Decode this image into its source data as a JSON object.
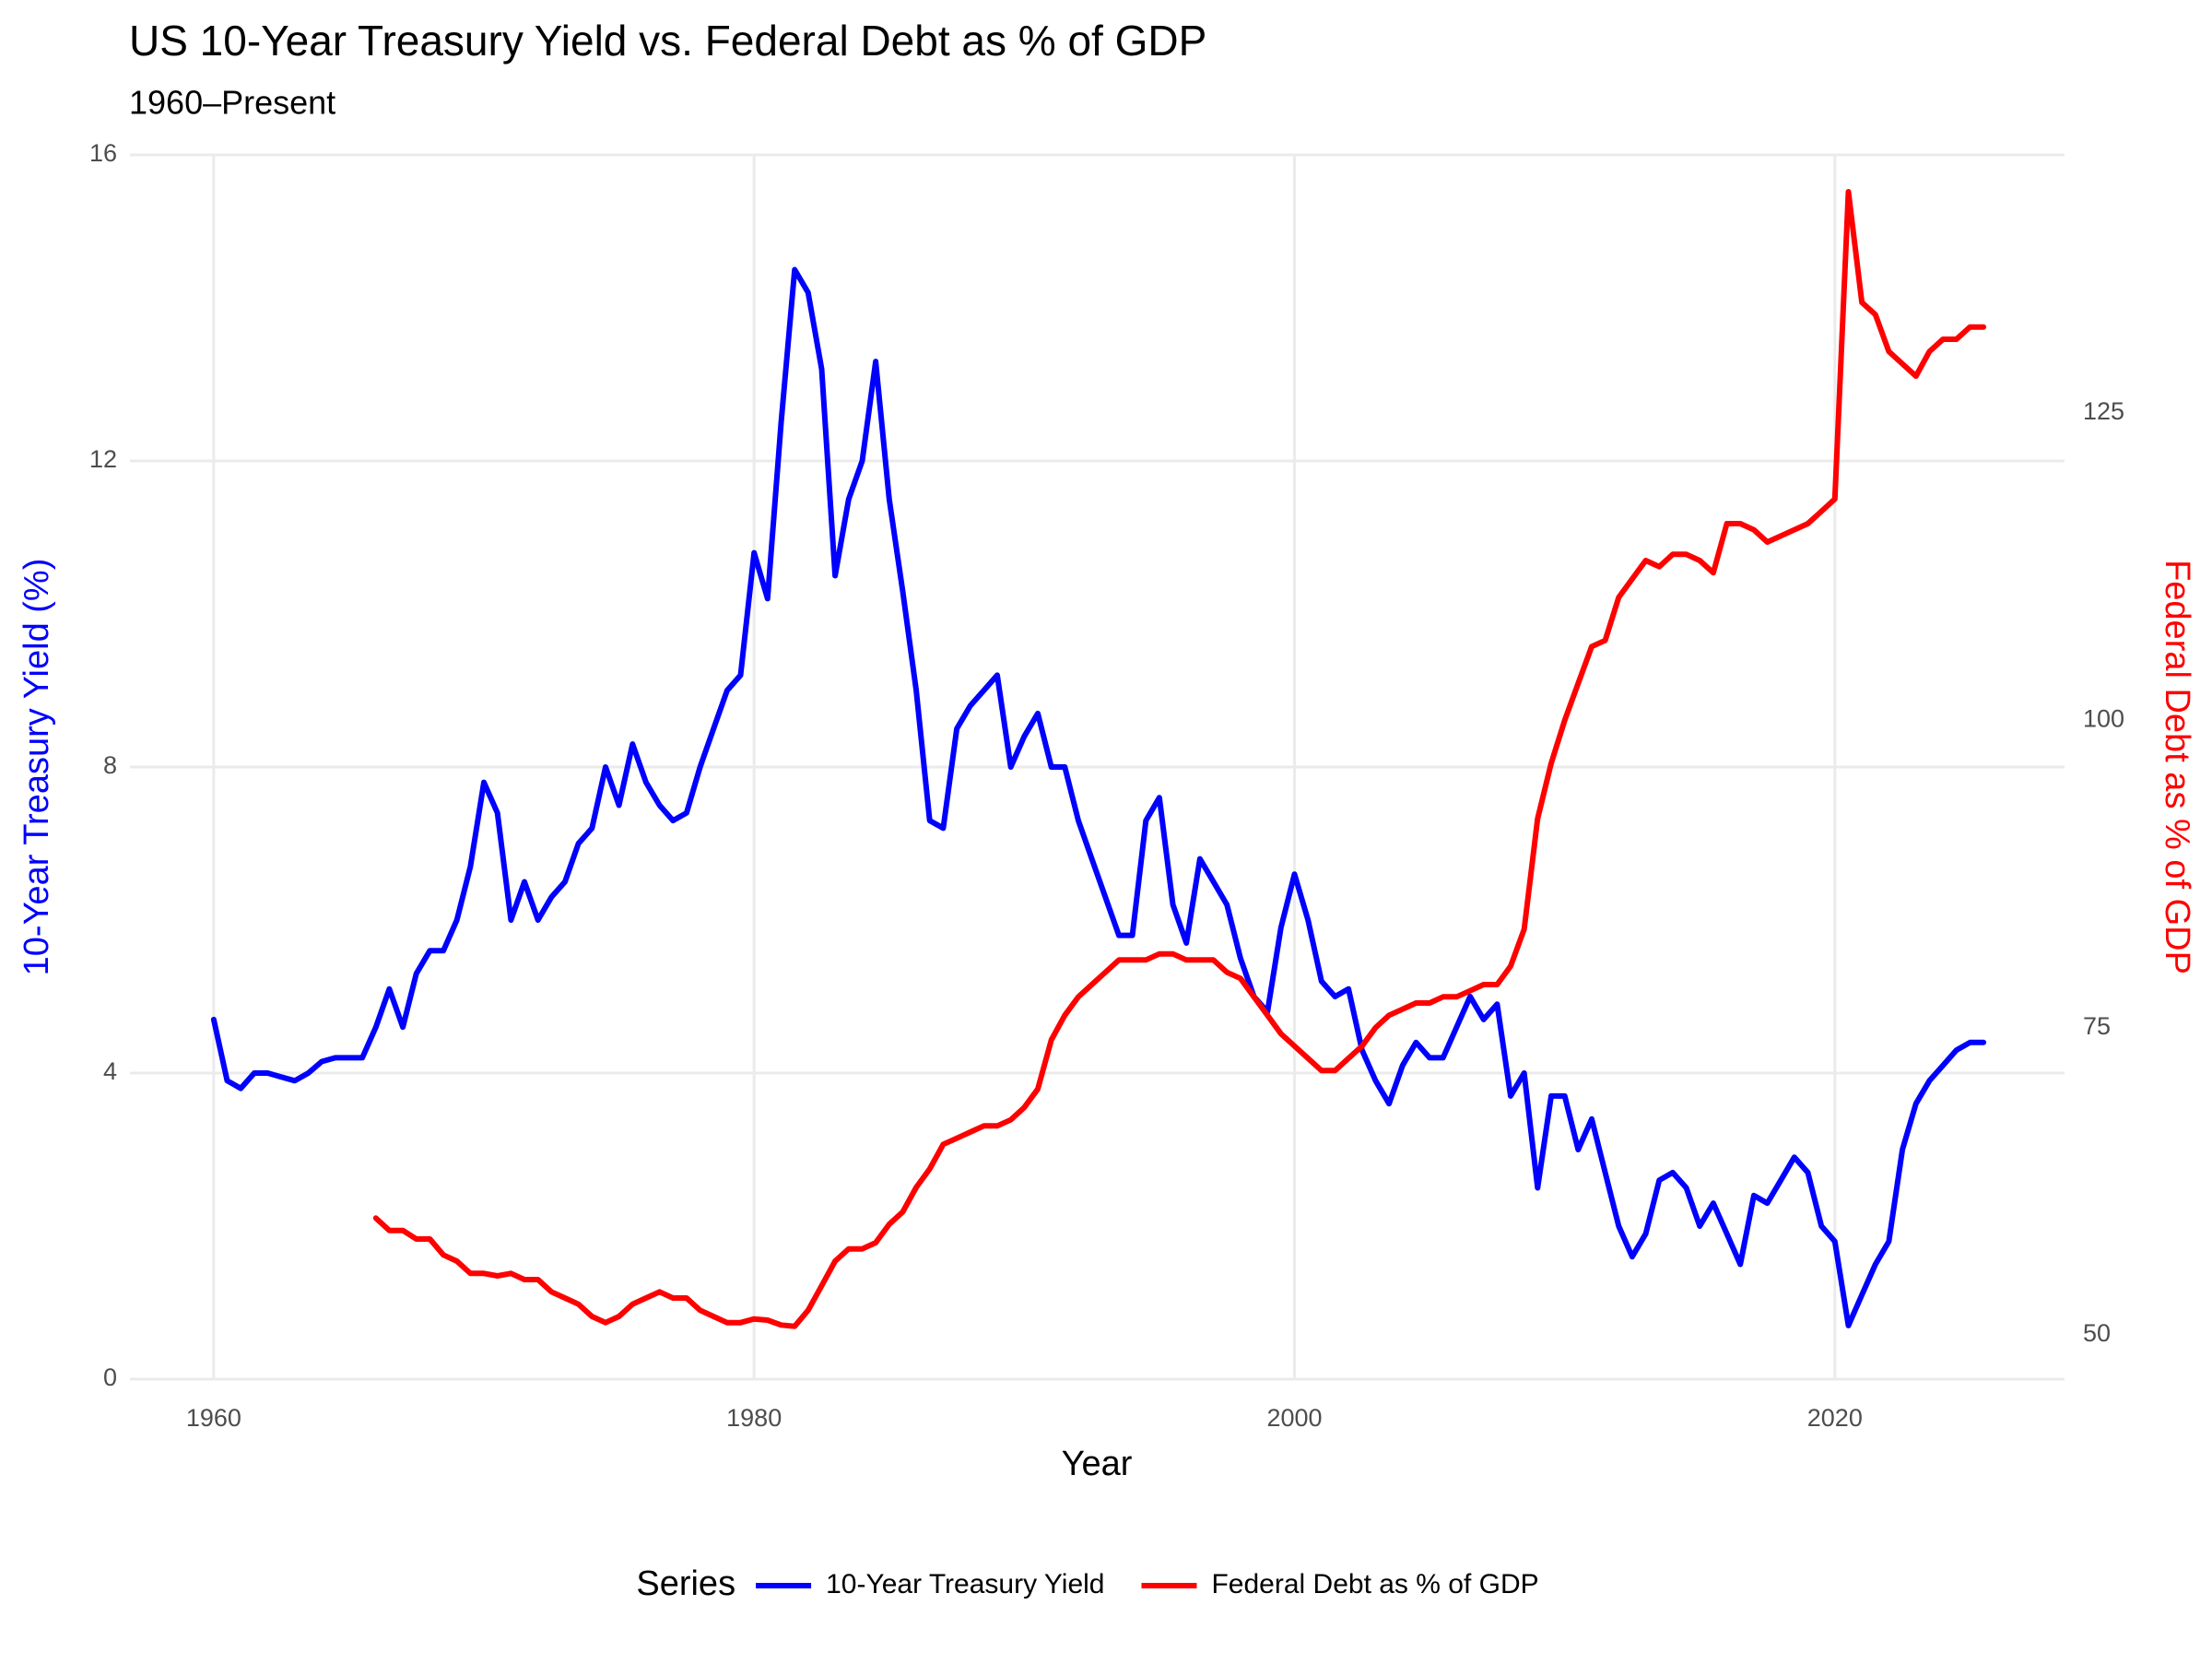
{
  "chart_data": {
    "type": "line",
    "title": "US 10-Year Treasury Yield vs. Federal Debt as % of GDP",
    "subtitle": "1960–Present",
    "x_label": "Year",
    "y_label": "10-Year Treasury Yield (%)",
    "y2_label": "Federal Debt as % of GDP",
    "legend_title": "Series",
    "legend_position": "bottom",
    "grid": true,
    "xlim": [
      1956.9,
      2028.5
    ],
    "xticks": [
      1960,
      1980,
      2000,
      2020
    ],
    "ylim": [
      0,
      16
    ],
    "yticks": [
      0,
      4,
      8,
      12,
      16
    ],
    "y2lim": [
      46.4,
      146.0
    ],
    "y2ticks": [
      50,
      75,
      100,
      125
    ],
    "x": [
      1960,
      1960.5,
      1961,
      1961.5,
      1962,
      1962.5,
      1963,
      1963.5,
      1964,
      1964.5,
      1965,
      1965.5,
      1966,
      1966.5,
      1967,
      1967.5,
      1968,
      1968.5,
      1969,
      1969.5,
      1970,
      1970.5,
      1971,
      1971.5,
      1972,
      1972.5,
      1973,
      1973.5,
      1974,
      1974.5,
      1975,
      1975.5,
      1976,
      1976.5,
      1977,
      1977.5,
      1978,
      1978.5,
      1979,
      1979.5,
      1980,
      1980.5,
      1981,
      1981.5,
      1982,
      1982.5,
      1983,
      1983.5,
      1984,
      1984.5,
      1985,
      1985.5,
      1986,
      1986.5,
      1987,
      1987.5,
      1988,
      1988.5,
      1989,
      1989.5,
      1990,
      1990.5,
      1991,
      1991.5,
      1992,
      1992.5,
      1993,
      1993.5,
      1994,
      1994.5,
      1995,
      1995.5,
      1996,
      1996.5,
      1997,
      1997.5,
      1998,
      1998.5,
      1999,
      1999.5,
      2000,
      2000.5,
      2001,
      2001.5,
      2002,
      2002.5,
      2003,
      2003.5,
      2004,
      2004.5,
      2005,
      2005.5,
      2006,
      2006.5,
      2007,
      2007.5,
      2008,
      2008.5,
      2009,
      2009.5,
      2010,
      2010.5,
      2011,
      2011.5,
      2012,
      2012.5,
      2013,
      2013.5,
      2014,
      2014.5,
      2015,
      2015.5,
      2016,
      2016.5,
      2017,
      2017.5,
      2018,
      2018.5,
      2019,
      2019.5,
      2020,
      2020.5,
      2021,
      2021.5,
      2022,
      2022.5,
      2023,
      2023.5,
      2024,
      2024.5,
      2025,
      2025.5
    ],
    "series": [
      {
        "name": "10-Year Treasury Yield",
        "color": "#0000ff",
        "axis": "y",
        "values": [
          4.7,
          3.9,
          3.8,
          4.0,
          4.0,
          3.95,
          3.9,
          4.0,
          4.15,
          4.2,
          4.2,
          4.2,
          4.6,
          5.1,
          4.6,
          5.3,
          5.6,
          5.6,
          6.0,
          6.7,
          7.8,
          7.4,
          6.0,
          6.5,
          6.0,
          6.3,
          6.5,
          7.0,
          7.2,
          8.0,
          7.5,
          8.3,
          7.8,
          7.5,
          7.3,
          7.4,
          8.0,
          8.5,
          9.0,
          9.2,
          10.8,
          10.2,
          12.5,
          14.5,
          14.2,
          13.2,
          10.5,
          11.5,
          12.0,
          13.3,
          11.5,
          10.3,
          9.0,
          7.3,
          7.2,
          8.5,
          8.8,
          9.0,
          9.2,
          8.0,
          8.4,
          8.7,
          8.0,
          8.0,
          7.3,
          6.8,
          6.3,
          5.8,
          5.8,
          7.3,
          7.6,
          6.2,
          5.7,
          6.8,
          6.5,
          6.2,
          5.5,
          5.0,
          4.8,
          5.9,
          6.6,
          6.0,
          5.2,
          5.0,
          5.1,
          4.3,
          3.9,
          3.6,
          4.1,
          4.4,
          4.2,
          4.2,
          4.6,
          5.0,
          4.7,
          4.9,
          3.7,
          4.0,
          2.5,
          3.7,
          3.7,
          3.0,
          3.4,
          2.7,
          2.0,
          1.6,
          1.9,
          2.6,
          2.7,
          2.5,
          2.0,
          2.3,
          1.9,
          1.5,
          2.4,
          2.3,
          2.6,
          2.9,
          2.7,
          2.0,
          1.8,
          0.7,
          1.1,
          1.5,
          1.8,
          3.0,
          3.6,
          3.9,
          4.1,
          4.3,
          4.4,
          4.4
        ]
      },
      {
        "name": "Federal Debt as % of GDP",
        "color": "#ff0000",
        "axis": "y2",
        "values": [
          null,
          null,
          null,
          null,
          null,
          null,
          null,
          null,
          null,
          null,
          null,
          null,
          59.5,
          58.5,
          58.5,
          57.8,
          57.8,
          56.5,
          56,
          55,
          55,
          54.8,
          55,
          54.5,
          54.5,
          53.5,
          53,
          52.5,
          51.5,
          51,
          51.5,
          52.5,
          53,
          53.5,
          53,
          53,
          52,
          51.5,
          51,
          51,
          51.3,
          51.2,
          50.8,
          50.7,
          52,
          54,
          56,
          57,
          57,
          57.5,
          59,
          60,
          62,
          63.5,
          65.5,
          66,
          66.5,
          67,
          67,
          67.5,
          68.5,
          70,
          74,
          76,
          77.5,
          78.5,
          79.5,
          80.5,
          80.5,
          80.5,
          81,
          81,
          80.5,
          80.5,
          80.5,
          79.5,
          79,
          77.5,
          76,
          74.5,
          73.5,
          72.5,
          71.5,
          71.5,
          72.5,
          73.5,
          75,
          76,
          76.5,
          77,
          77,
          77.5,
          77.5,
          78,
          78.5,
          78.5,
          80,
          83,
          92,
          96.5,
          100,
          103,
          106,
          106.5,
          110,
          111.5,
          113,
          112.5,
          113.5,
          113.5,
          113,
          112,
          116,
          116,
          115.5,
          114.5,
          115,
          115.5,
          116,
          117,
          118,
          143,
          134,
          133,
          130,
          129,
          128,
          130,
          131,
          131,
          132,
          132
        ]
      }
    ]
  }
}
